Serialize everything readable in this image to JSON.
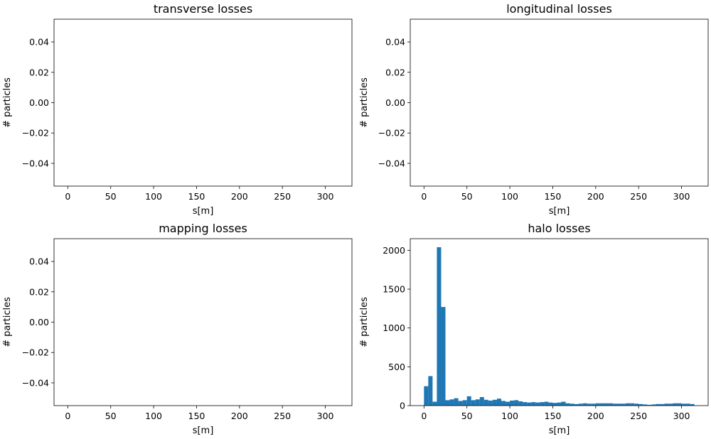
{
  "chart_data": [
    {
      "type": "bar",
      "title": "transverse losses",
      "xlabel": "s[m]",
      "ylabel": "# particles",
      "xlim": [
        -16,
        331
      ],
      "ylim": [
        -0.055,
        0.055
      ],
      "xticks": [
        0,
        50,
        100,
        150,
        200,
        250,
        300
      ],
      "yticks": [
        0.04,
        0.02,
        0.0
      ],
      "ytick_labels": [
        "0.04",
        "0.02",
        "0.00",
        "−0.02",
        "−0.04"
      ],
      "ytick_values": [
        0.04,
        0.02,
        0.0,
        -0.02,
        -0.04
      ],
      "bin_width": 5,
      "x": [],
      "values": []
    },
    {
      "type": "bar",
      "title": "longitudinal losses",
      "xlabel": "s[m]",
      "ylabel": "# particles",
      "xlim": [
        -16,
        331
      ],
      "ylim": [
        -0.055,
        0.055
      ],
      "xticks": [
        0,
        50,
        100,
        150,
        200,
        250,
        300
      ],
      "ytick_labels": [
        "0.04",
        "0.02",
        "0.00",
        "−0.02",
        "−0.04"
      ],
      "ytick_values": [
        0.04,
        0.02,
        0.0,
        -0.02,
        -0.04
      ],
      "bin_width": 5,
      "x": [],
      "values": []
    },
    {
      "type": "bar",
      "title": "mapping losses",
      "xlabel": "s[m]",
      "ylabel": "# particles",
      "xlim": [
        -16,
        331
      ],
      "ylim": [
        -0.055,
        0.055
      ],
      "xticks": [
        0,
        50,
        100,
        150,
        200,
        250,
        300
      ],
      "ytick_labels": [
        "0.04",
        "0.02",
        "0.00",
        "−0.02",
        "−0.04"
      ],
      "ytick_values": [
        0.04,
        0.02,
        0.0,
        -0.02,
        -0.04
      ],
      "bin_width": 5,
      "x": [],
      "values": []
    },
    {
      "type": "bar",
      "title": "halo losses",
      "xlabel": "s[m]",
      "ylabel": "# particles",
      "xlim": [
        -16,
        331
      ],
      "ylim": [
        0,
        2150
      ],
      "xticks": [
        0,
        50,
        100,
        150,
        200,
        250,
        300
      ],
      "ytick_labels": [
        "0",
        "500",
        "1000",
        "1500",
        "2000"
      ],
      "ytick_values": [
        0,
        500,
        1000,
        1500,
        2000
      ],
      "bin_width": 5,
      "color": "#1f77b4",
      "x": [
        0,
        5,
        10,
        15,
        20,
        25,
        30,
        35,
        40,
        45,
        50,
        55,
        60,
        65,
        70,
        75,
        80,
        85,
        90,
        95,
        100,
        105,
        110,
        115,
        120,
        125,
        130,
        135,
        140,
        145,
        150,
        155,
        160,
        165,
        170,
        175,
        180,
        185,
        190,
        195,
        200,
        205,
        210,
        215,
        220,
        225,
        230,
        235,
        240,
        245,
        250,
        255,
        260,
        265,
        270,
        275,
        280,
        285,
        290,
        295,
        300,
        305,
        310
      ],
      "values": [
        250,
        380,
        50,
        2040,
        1270,
        70,
        80,
        95,
        60,
        70,
        120,
        70,
        80,
        110,
        75,
        65,
        75,
        90,
        60,
        50,
        65,
        70,
        55,
        45,
        40,
        45,
        40,
        45,
        50,
        40,
        35,
        40,
        50,
        30,
        25,
        20,
        25,
        30,
        25,
        25,
        30,
        30,
        30,
        30,
        25,
        25,
        25,
        30,
        30,
        25,
        20,
        15,
        10,
        15,
        20,
        20,
        25,
        25,
        30,
        30,
        25,
        25,
        20
      ]
    }
  ]
}
